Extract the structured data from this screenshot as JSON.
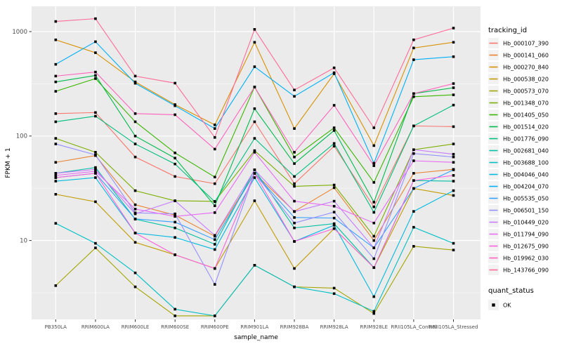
{
  "chart_data": {
    "type": "line",
    "title": "",
    "xlabel": "sample_name",
    "ylabel": "FPKM + 1",
    "y_scale": "log10",
    "y_tick_labels": [
      "1000",
      "100",
      "10"
    ],
    "y_tick_values": [
      1000,
      100,
      10
    ],
    "y_minor_values": [
      316.23,
      31.623,
      3.1623
    ],
    "ylim": [
      1.76,
      1718
    ],
    "grid": "on",
    "legend_position": "right",
    "categories": [
      "PB350LA",
      "RRIM600LA",
      "RRIM600LE",
      "RRIM600SE",
      "RRIM600PE",
      "RRIM901LA",
      "RRIM928BA",
      "RRIM928LA",
      "RRIM928LE",
      "RRII105LA_Control",
      "RRII105LA_Stressed"
    ],
    "series": [
      {
        "name": "Hb_000107_390",
        "color": "#F8766D",
        "values": [
          164,
          168,
          63,
          41,
          35,
          137,
          35,
          80,
          21,
          125,
          123
        ]
      },
      {
        "name": "Hb_000141_060",
        "color": "#EA8331",
        "values": [
          56,
          65,
          22,
          17.5,
          11,
          44,
          19,
          32,
          10,
          44,
          48
        ]
      },
      {
        "name": "Hb_000270_840",
        "color": "#D89000",
        "values": [
          834,
          628,
          330,
          200,
          128,
          790,
          118,
          395,
          81,
          697,
          790
        ]
      },
      {
        "name": "Hb_000538_020",
        "color": "#C09B00",
        "values": [
          27.7,
          23.5,
          9.6,
          7.3,
          5.4,
          24,
          5.4,
          13,
          5.5,
          31.5,
          27
        ]
      },
      {
        "name": "Hb_000573_070",
        "color": "#A3A500",
        "values": [
          3.7,
          8.5,
          3.6,
          1.9,
          1.9,
          5.8,
          3.6,
          3.5,
          2.0,
          8.8,
          8.1
        ]
      },
      {
        "name": "Hb_001348_070",
        "color": "#7CAE00",
        "values": [
          95,
          70,
          30,
          24,
          23.7,
          72.5,
          33,
          34,
          11,
          74,
          84
        ]
      },
      {
        "name": "Hb_001405_050",
        "color": "#39B600",
        "values": [
          268,
          355,
          137,
          69,
          40.5,
          295,
          63,
          120,
          36,
          238,
          248
        ]
      },
      {
        "name": "Hb_001514_020",
        "color": "#00BB4E",
        "values": [
          330,
          380,
          100,
          61.5,
          21.5,
          183,
          54.5,
          113,
          23.3,
          255,
          290
        ]
      },
      {
        "name": "Hb_001776_090",
        "color": "#00BF7D",
        "values": [
          137,
          155,
          84,
          54,
          23.5,
          95,
          41,
          85,
          18.6,
          125,
          198
        ]
      },
      {
        "name": "Hb_002681_040",
        "color": "#00C1A3",
        "values": [
          44,
          50,
          16,
          13.2,
          9.2,
          47.5,
          13.2,
          14.5,
          5.5,
          37.5,
          37
        ]
      },
      {
        "name": "Hb_003688_100",
        "color": "#00BFC4",
        "values": [
          14.6,
          9.4,
          4.9,
          2.2,
          1.9,
          5.8,
          3.6,
          3.1,
          2.1,
          13.4,
          9.4
        ]
      },
      {
        "name": "Hb_004046_040",
        "color": "#00BAE0",
        "values": [
          37,
          40,
          11.8,
          10.7,
          8.2,
          40,
          9.8,
          14,
          2.9,
          19,
          30
        ]
      },
      {
        "name": "Hb_004204_070",
        "color": "#00B0F6",
        "values": [
          486,
          800,
          320,
          195,
          118,
          461,
          240,
          404,
          55,
          538,
          575
        ]
      },
      {
        "name": "Hb_005535_050",
        "color": "#35A2FF",
        "values": [
          40,
          44,
          16.1,
          15,
          10.2,
          44,
          16.6,
          16.4,
          8.5,
          31.5,
          47.5
        ]
      },
      {
        "name": "Hb_006501_150",
        "color": "#9590FF",
        "values": [
          84,
          66,
          18.4,
          18,
          3.8,
          44,
          14.7,
          18.7,
          6.7,
          68,
          63
        ]
      },
      {
        "name": "Hb_010449_020",
        "color": "#C77CFF",
        "values": [
          44,
          48,
          18,
          24,
          11.2,
          47.5,
          18.9,
          23.8,
          8.5,
          74,
          67
        ]
      },
      {
        "name": "Hb_011794_090",
        "color": "#E76BF3",
        "values": [
          42,
          46,
          20,
          17,
          18.5,
          70,
          23.8,
          21.3,
          14.7,
          58,
          56
        ]
      },
      {
        "name": "Hb_012675_090",
        "color": "#FA62DB",
        "values": [
          40,
          44,
          11.8,
          7.3,
          5.4,
          44,
          9.8,
          13,
          5.5,
          37.5,
          42
        ]
      },
      {
        "name": "Hb_019962_030",
        "color": "#FF62BC",
        "values": [
          375,
          410,
          164,
          160,
          75,
          295,
          70,
          197,
          52,
          255,
          318
        ]
      },
      {
        "name": "Hb_143766_090",
        "color": "#FF6A98",
        "values": [
          1250,
          1330,
          375,
          321,
          97,
          1050,
          276,
          450,
          120,
          834,
          1080
        ]
      }
    ],
    "legend": {
      "title": "tracking_id"
    },
    "legend2": {
      "title": "quant_status",
      "items": [
        {
          "label": "OK",
          "marker": "black-square"
        }
      ]
    },
    "colors": {
      "panel_bg": "#EBEBEB",
      "grid_major": "#FFFFFF",
      "grid_minor": "#F7F7F7",
      "axis_text": "#4D4D4D",
      "axis_title": "#000000",
      "tick_mark": "#333333",
      "point": "#000000",
      "legend_key_bg": "#F2F2F2",
      "page_bg": "#FFFFFF"
    }
  }
}
